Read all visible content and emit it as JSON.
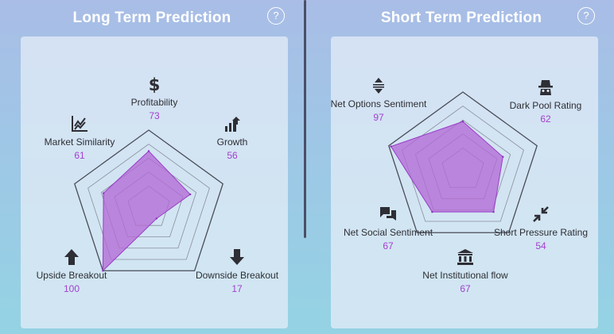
{
  "colors": {
    "accent": "#a340d0",
    "fill": "#b36ad6",
    "grid": "#555a66"
  },
  "long_term": {
    "title": "Long Term Prediction",
    "help_label": "?",
    "axes": [
      {
        "icon": "dollar-icon",
        "label": "Profitability",
        "value": "73"
      },
      {
        "icon": "growth-chart-icon",
        "label": "Growth",
        "value": "56"
      },
      {
        "icon": "arrow-down-icon",
        "label": "Downside Breakout",
        "value": "17"
      },
      {
        "icon": "arrow-up-icon",
        "label": "Upside Breakout",
        "value": "100"
      },
      {
        "icon": "line-chart-icon",
        "label": "Market Similarity",
        "value": "61"
      }
    ]
  },
  "short_term": {
    "title": "Short Term Prediction",
    "help_label": "?",
    "axes": [
      {
        "icon": "dark-pool-icon",
        "label": "Dark Pool Rating",
        "value": "62"
      },
      {
        "icon": "compress-arrows-icon",
        "label": "Short Pressure Rating",
        "value": "54"
      },
      {
        "icon": "bank-icon",
        "label": "Net Institutional flow",
        "value": "67"
      },
      {
        "icon": "chat-bubbles-icon",
        "label": "Net Social Sentiment",
        "value": "67"
      },
      {
        "icon": "options-sort-icon",
        "label": "Net Options Sentiment",
        "value": "97"
      }
    ]
  }
}
